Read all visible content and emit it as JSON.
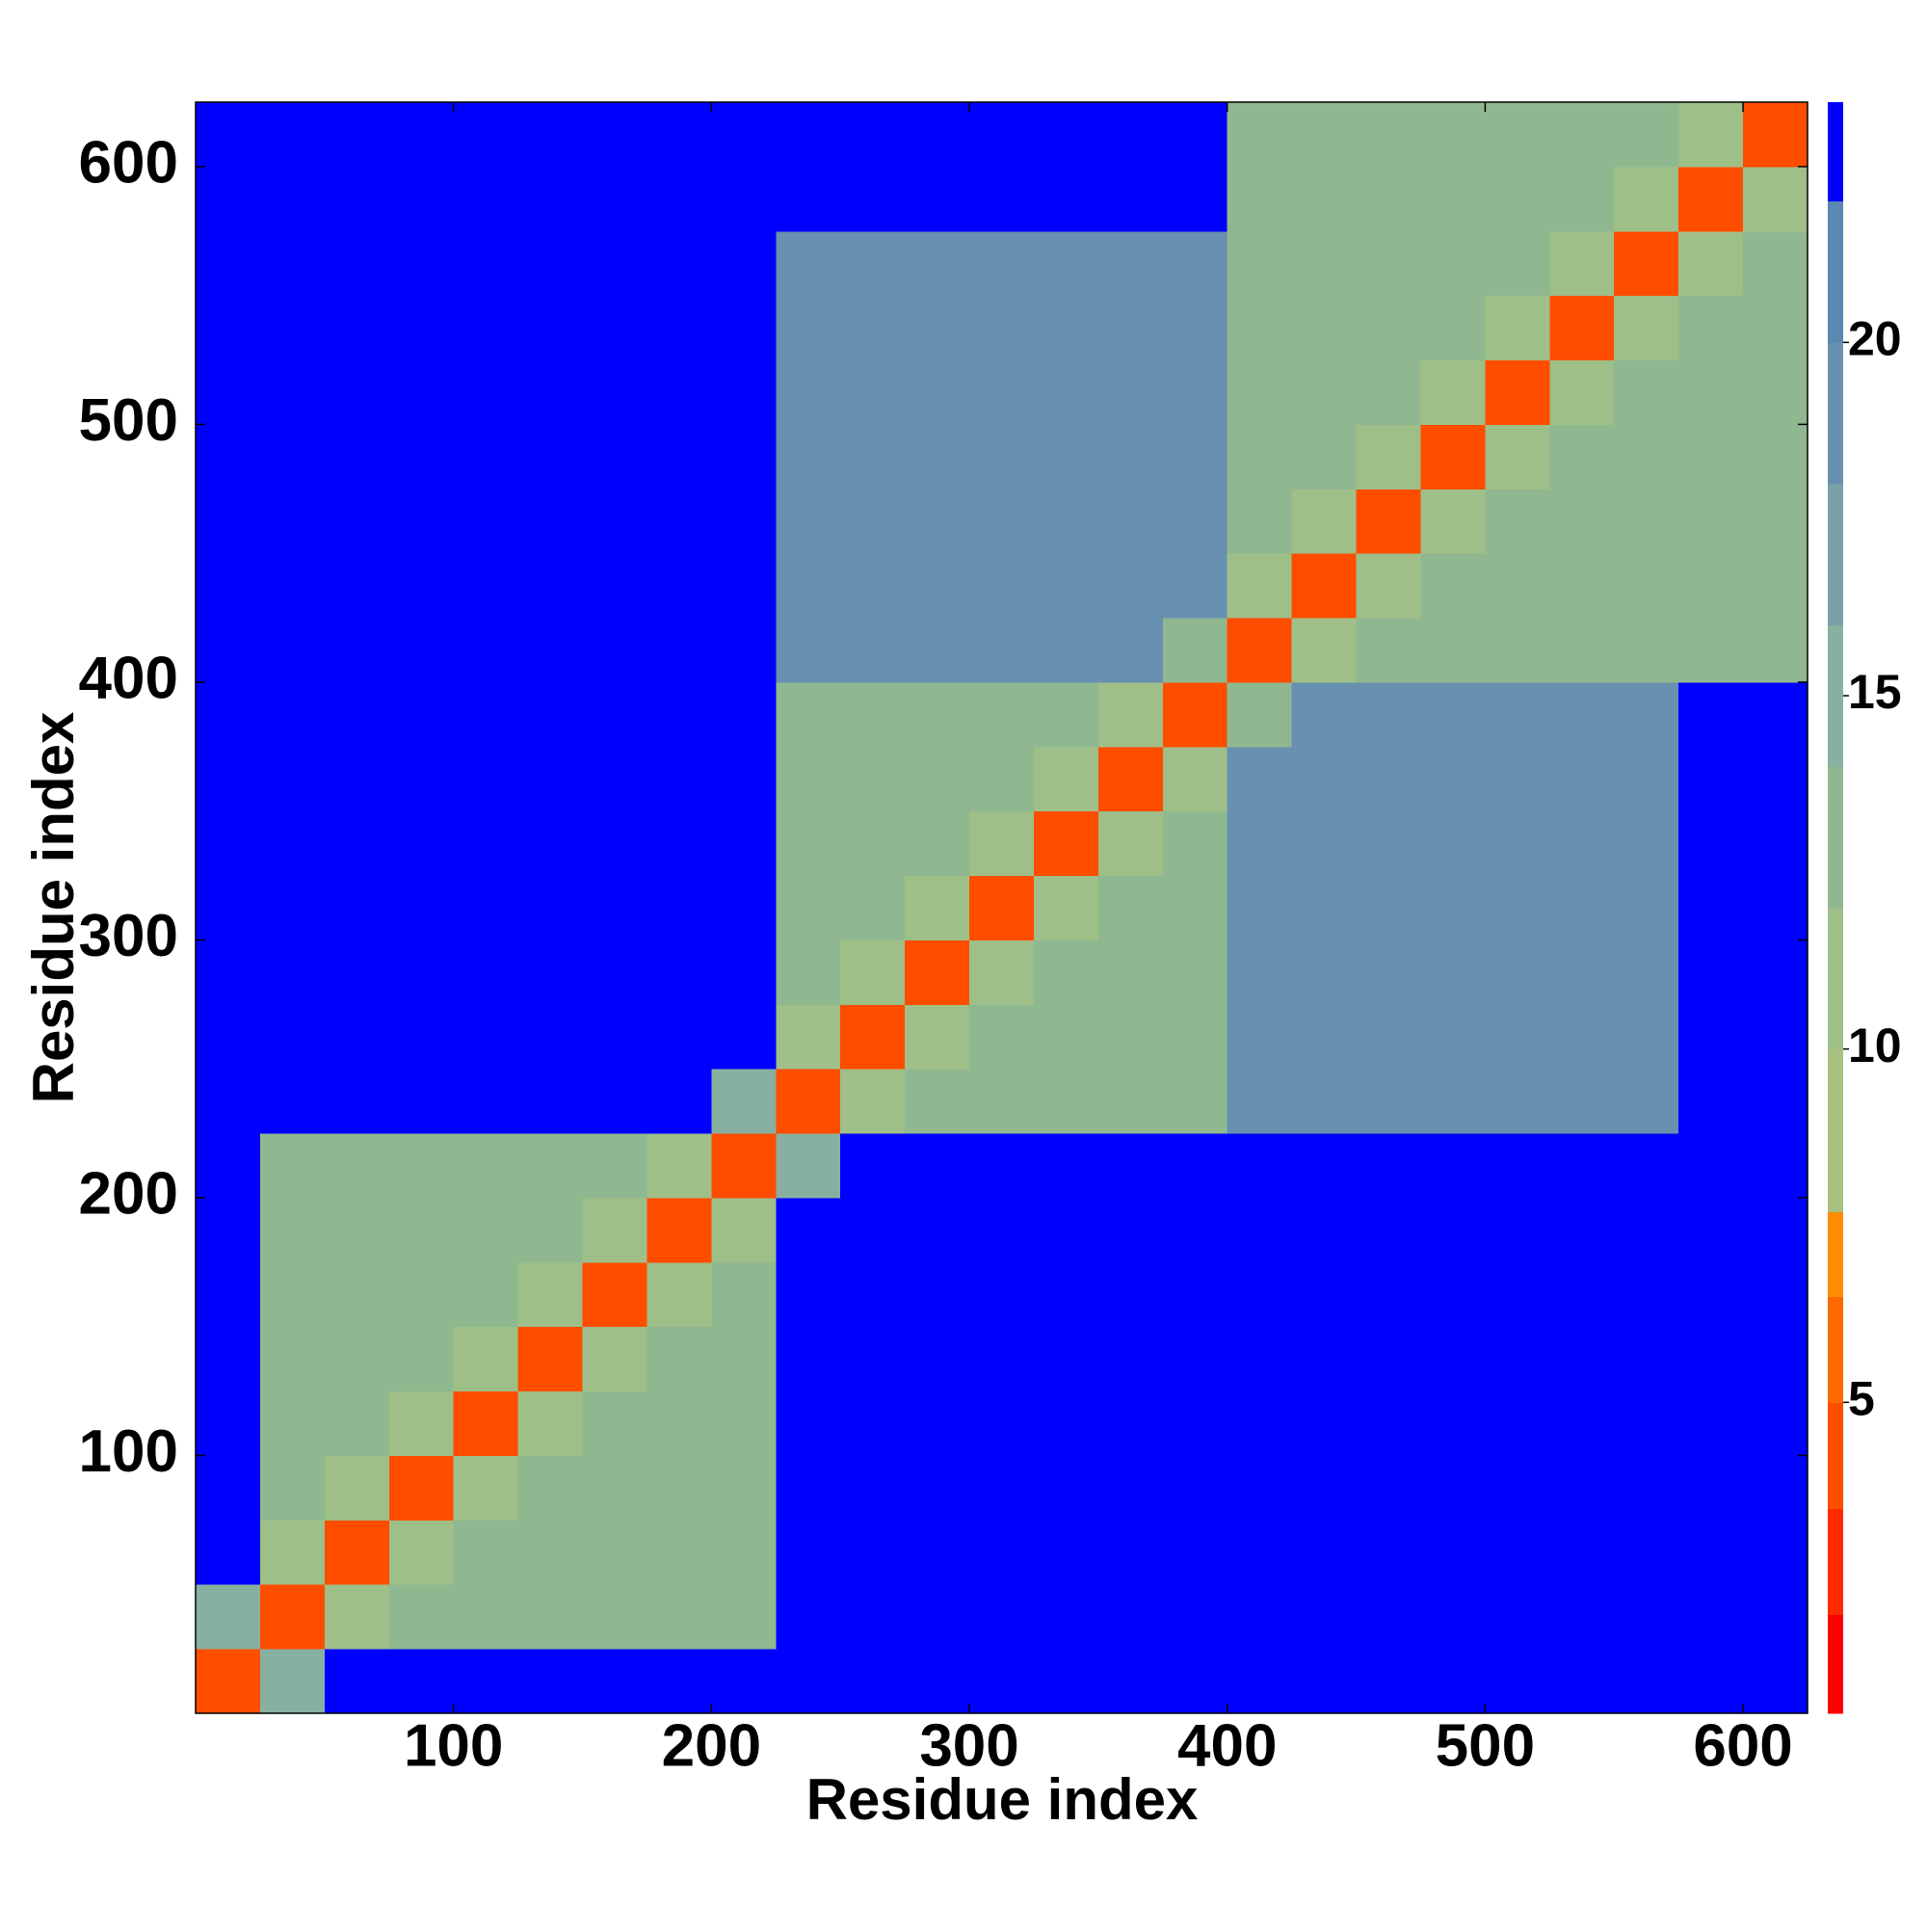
{
  "chart_data": {
    "type": "heatmap",
    "x_label": "Residue index",
    "y_label": "Residue index",
    "bins": [
      0,
      25,
      50,
      75,
      100,
      125,
      150,
      175,
      200,
      225,
      250,
      275,
      300,
      325,
      350,
      375,
      400,
      425,
      450,
      475,
      500,
      525,
      550,
      575,
      600,
      625
    ],
    "xlim": [
      0,
      625
    ],
    "ylim": [
      0,
      625
    ],
    "xticks": [
      100,
      200,
      300,
      400,
      500,
      600
    ],
    "yticks": [
      100,
      200,
      300,
      400,
      500,
      600
    ],
    "z": [
      [
        5,
        16,
        23,
        23,
        23,
        23,
        23,
        23,
        23,
        23,
        23,
        23,
        23,
        23,
        23,
        23,
        23,
        23,
        23,
        23,
        23,
        23,
        23,
        23,
        23
      ],
      [
        16,
        5,
        12,
        14,
        14,
        14,
        14,
        14,
        14,
        23,
        23,
        23,
        23,
        23,
        23,
        23,
        23,
        23,
        23,
        23,
        23,
        23,
        23,
        23,
        23
      ],
      [
        23,
        12,
        5,
        12,
        14,
        14,
        14,
        14,
        14,
        23,
        23,
        23,
        23,
        23,
        23,
        23,
        23,
        23,
        23,
        23,
        23,
        23,
        23,
        23,
        23
      ],
      [
        23,
        14,
        12,
        5,
        12,
        14,
        14,
        14,
        14,
        23,
        23,
        23,
        23,
        23,
        23,
        23,
        23,
        23,
        23,
        23,
        23,
        23,
        23,
        23,
        23
      ],
      [
        23,
        14,
        14,
        12,
        5,
        12,
        14,
        14,
        14,
        23,
        23,
        23,
        23,
        23,
        23,
        23,
        23,
        23,
        23,
        23,
        23,
        23,
        23,
        23,
        23
      ],
      [
        23,
        14,
        14,
        14,
        12,
        5,
        12,
        14,
        14,
        23,
        23,
        23,
        23,
        23,
        23,
        23,
        23,
        23,
        23,
        23,
        23,
        23,
        23,
        23,
        23
      ],
      [
        23,
        14,
        14,
        14,
        14,
        12,
        5,
        12,
        14,
        23,
        23,
        23,
        23,
        23,
        23,
        23,
        23,
        23,
        23,
        23,
        23,
        23,
        23,
        23,
        23
      ],
      [
        23,
        14,
        14,
        14,
        14,
        14,
        12,
        5,
        12,
        23,
        23,
        23,
        23,
        23,
        23,
        23,
        23,
        23,
        23,
        23,
        23,
        23,
        23,
        23,
        23
      ],
      [
        23,
        14,
        14,
        14,
        14,
        14,
        14,
        12,
        5,
        16,
        23,
        23,
        23,
        23,
        23,
        23,
        23,
        23,
        23,
        23,
        23,
        23,
        23,
        23,
        23
      ],
      [
        23,
        23,
        23,
        23,
        23,
        23,
        23,
        23,
        16,
        5,
        12,
        14,
        14,
        14,
        14,
        14,
        19,
        19,
        19,
        19,
        19,
        19,
        19,
        23,
        23
      ],
      [
        23,
        23,
        23,
        23,
        23,
        23,
        23,
        23,
        23,
        12,
        5,
        12,
        14,
        14,
        14,
        14,
        19,
        19,
        19,
        19,
        19,
        19,
        19,
        23,
        23
      ],
      [
        23,
        23,
        23,
        23,
        23,
        23,
        23,
        23,
        23,
        14,
        12,
        5,
        12,
        14,
        14,
        14,
        19,
        19,
        19,
        19,
        19,
        19,
        19,
        23,
        23
      ],
      [
        23,
        23,
        23,
        23,
        23,
        23,
        23,
        23,
        23,
        14,
        14,
        12,
        5,
        12,
        14,
        14,
        19,
        19,
        19,
        19,
        19,
        19,
        19,
        23,
        23
      ],
      [
        23,
        23,
        23,
        23,
        23,
        23,
        23,
        23,
        23,
        14,
        14,
        14,
        12,
        5,
        12,
        14,
        19,
        19,
        19,
        19,
        19,
        19,
        19,
        23,
        23
      ],
      [
        23,
        23,
        23,
        23,
        23,
        23,
        23,
        23,
        23,
        14,
        14,
        14,
        14,
        12,
        5,
        12,
        19,
        19,
        19,
        19,
        19,
        19,
        19,
        23,
        23
      ],
      [
        23,
        23,
        23,
        23,
        23,
        23,
        23,
        23,
        23,
        14,
        14,
        14,
        14,
        14,
        12,
        5,
        14,
        19,
        19,
        19,
        19,
        19,
        19,
        23,
        23
      ],
      [
        23,
        23,
        23,
        23,
        23,
        23,
        23,
        23,
        23,
        19,
        19,
        19,
        19,
        19,
        19,
        14,
        5,
        12,
        14,
        14,
        14,
        14,
        14,
        14,
        14
      ],
      [
        23,
        23,
        23,
        23,
        23,
        23,
        23,
        23,
        23,
        19,
        19,
        19,
        19,
        19,
        19,
        19,
        12,
        5,
        12,
        14,
        14,
        14,
        14,
        14,
        14
      ],
      [
        23,
        23,
        23,
        23,
        23,
        23,
        23,
        23,
        23,
        19,
        19,
        19,
        19,
        19,
        19,
        19,
        14,
        12,
        5,
        12,
        14,
        14,
        14,
        14,
        14
      ],
      [
        23,
        23,
        23,
        23,
        23,
        23,
        23,
        23,
        23,
        19,
        19,
        19,
        19,
        19,
        19,
        19,
        14,
        14,
        12,
        5,
        12,
        14,
        14,
        14,
        14
      ],
      [
        23,
        23,
        23,
        23,
        23,
        23,
        23,
        23,
        23,
        19,
        19,
        19,
        19,
        19,
        19,
        19,
        14,
        14,
        14,
        12,
        5,
        12,
        14,
        14,
        14
      ],
      [
        23,
        23,
        23,
        23,
        23,
        23,
        23,
        23,
        23,
        19,
        19,
        19,
        19,
        19,
        19,
        19,
        14,
        14,
        14,
        14,
        12,
        5,
        12,
        14,
        14
      ],
      [
        23,
        23,
        23,
        23,
        23,
        23,
        23,
        23,
        23,
        19,
        19,
        19,
        19,
        19,
        19,
        19,
        14,
        14,
        14,
        14,
        14,
        12,
        5,
        12,
        14
      ],
      [
        23,
        23,
        23,
        23,
        23,
        23,
        23,
        23,
        23,
        23,
        23,
        23,
        23,
        23,
        23,
        23,
        14,
        14,
        14,
        14,
        14,
        14,
        12,
        5,
        12
      ],
      [
        23,
        23,
        23,
        23,
        23,
        23,
        23,
        23,
        23,
        23,
        23,
        23,
        23,
        23,
        23,
        23,
        14,
        14,
        14,
        14,
        14,
        14,
        14,
        12,
        5
      ]
    ],
    "colorbar": {
      "lim": [
        0.6,
        23.4
      ],
      "ticks": [
        5,
        10,
        15,
        20
      ],
      "levels": [
        0.6,
        2.0,
        3.5,
        5.0,
        6.5,
        7.7,
        10,
        12,
        14,
        16,
        18,
        20,
        22,
        23.4
      ],
      "colors": [
        "#ff0000",
        "#ff2a00",
        "#ff4d00",
        "#ff6a00",
        "#ff8c00",
        "#a8c080",
        "#9fbf88",
        "#90b890",
        "#88b0a0",
        "#7aa0a8",
        "#6890b0",
        "#5a88b0",
        "#0000ff"
      ]
    }
  }
}
